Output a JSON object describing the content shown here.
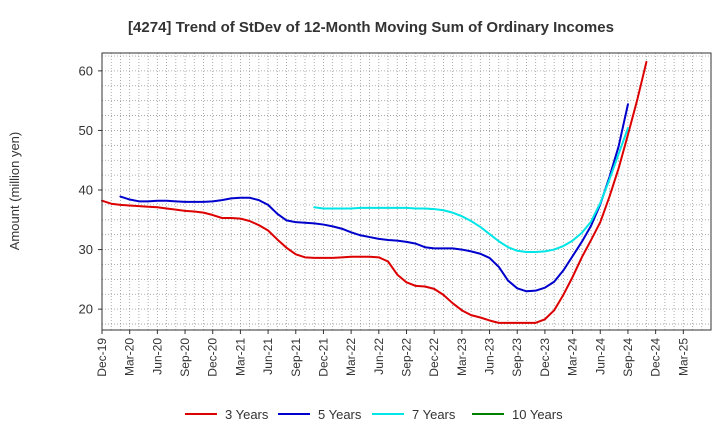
{
  "chart_data": {
    "type": "line",
    "title": "[4274]  Trend of StDev of 12-Month Moving Sum of Ordinary Incomes",
    "xlabel": "",
    "ylabel": "Amount (million yen)",
    "ylim": [
      16.5,
      63
    ],
    "yticks": [
      20,
      30,
      40,
      50,
      60
    ],
    "xrange": [
      0,
      66
    ],
    "x_tick_labels": [
      "Dec-19",
      "Mar-20",
      "Jun-20",
      "Sep-20",
      "Dec-20",
      "Mar-21",
      "Jun-21",
      "Sep-21",
      "Dec-21",
      "Mar-22",
      "Jun-22",
      "Sep-22",
      "Dec-22",
      "Mar-23",
      "Jun-23",
      "Sep-23",
      "Dec-23",
      "Mar-24",
      "Jun-24",
      "Sep-24",
      "Dec-24",
      "Mar-25"
    ],
    "grid": true,
    "legend_position": "bottom",
    "series": [
      {
        "name": "3 Years",
        "color": "#dd0000",
        "x": [
          0,
          1,
          2,
          3,
          4,
          5,
          6,
          7,
          8,
          9,
          10,
          11,
          12,
          13,
          14,
          15,
          16,
          17,
          18,
          19,
          20,
          21,
          22,
          23,
          24,
          25,
          26,
          27,
          28,
          29,
          30,
          31,
          32,
          33,
          34,
          35,
          36,
          37,
          38,
          39,
          40,
          41,
          42,
          43,
          44,
          45,
          46,
          47,
          48,
          49,
          50,
          51,
          52,
          53,
          54,
          55,
          56,
          57,
          58,
          59,
          60,
          61,
          62,
          63
        ],
        "values": [
          38.2,
          37.7,
          37.5,
          37.4,
          37.3,
          37.2,
          37.1,
          36.9,
          36.7,
          36.5,
          36.4,
          36.2,
          35.8,
          35.3,
          35.3,
          35.2,
          34.8,
          34.1,
          33.2,
          31.7,
          30.3,
          29.2,
          28.7,
          28.6,
          28.6,
          28.6,
          28.7,
          28.8,
          28.8,
          28.8,
          28.7,
          28.0,
          25.8,
          24.5,
          23.9,
          23.8,
          23.4,
          22.4,
          21.0,
          19.8,
          19.0,
          18.6,
          18.1,
          17.7,
          17.7,
          17.7,
          17.7,
          17.7,
          18.3,
          19.8,
          22.4,
          25.4,
          28.7,
          31.6,
          34.6,
          38.9,
          43.7,
          49.3,
          55.1,
          61.5,
          null,
          null,
          null,
          null
        ]
      },
      {
        "name": "5 Years",
        "color": "#0000cc",
        "x": [
          0,
          1,
          2,
          3,
          4,
          5,
          6,
          7,
          8,
          9,
          10,
          11,
          12,
          13,
          14,
          15,
          16,
          17,
          18,
          19,
          20,
          21,
          22,
          23,
          24,
          25,
          26,
          27,
          28,
          29,
          30,
          31,
          32,
          33,
          34,
          35,
          36,
          37,
          38,
          39,
          40,
          41,
          42,
          43,
          44,
          45,
          46,
          47,
          48,
          49,
          50,
          51,
          52,
          53,
          54,
          55,
          56,
          57,
          58,
          59,
          60,
          61,
          62,
          63
        ],
        "values": [
          null,
          null,
          38.9,
          38.4,
          38.1,
          38.1,
          38.2,
          38.2,
          38.1,
          38.0,
          38.0,
          38.0,
          38.1,
          38.3,
          38.6,
          38.7,
          38.7,
          38.3,
          37.5,
          36.0,
          34.9,
          34.6,
          34.5,
          34.4,
          34.2,
          33.9,
          33.5,
          32.9,
          32.4,
          32.1,
          31.8,
          31.6,
          31.5,
          31.3,
          31.0,
          30.4,
          30.2,
          30.2,
          30.2,
          30.0,
          29.7,
          29.3,
          28.6,
          27.1,
          24.8,
          23.5,
          23.0,
          23.1,
          23.6,
          24.6,
          26.5,
          28.9,
          31.3,
          34.0,
          37.6,
          42.2,
          47.4,
          54.4,
          null,
          null,
          null,
          null,
          null,
          null
        ]
      },
      {
        "name": "7 Years",
        "color": "#00e5e5",
        "x": [
          0,
          1,
          2,
          3,
          4,
          5,
          6,
          7,
          8,
          9,
          10,
          11,
          12,
          13,
          14,
          15,
          16,
          17,
          18,
          19,
          20,
          21,
          22,
          23,
          24,
          25,
          26,
          27,
          28,
          29,
          30,
          31,
          32,
          33,
          34,
          35,
          36,
          37,
          38,
          39,
          40,
          41,
          42,
          43,
          44,
          45,
          46,
          47,
          48,
          49,
          50,
          51,
          52,
          53,
          54,
          55,
          56,
          57,
          58,
          59,
          60,
          61,
          62,
          63
        ],
        "values": [
          null,
          null,
          null,
          null,
          null,
          null,
          null,
          null,
          null,
          null,
          null,
          null,
          null,
          null,
          null,
          null,
          null,
          null,
          null,
          null,
          null,
          null,
          null,
          37.1,
          36.9,
          36.9,
          36.9,
          36.9,
          37.0,
          37.0,
          37.0,
          37.0,
          37.0,
          37.0,
          36.9,
          36.9,
          36.8,
          36.6,
          36.2,
          35.6,
          34.8,
          33.8,
          32.6,
          31.4,
          30.4,
          29.8,
          29.6,
          29.6,
          29.7,
          30.0,
          30.6,
          31.5,
          32.8,
          34.7,
          37.8,
          41.8,
          46.1,
          50.4,
          null,
          null,
          null,
          null,
          null,
          null
        ]
      },
      {
        "name": "10 Years",
        "color": "#008000",
        "x": [],
        "values": []
      }
    ]
  }
}
